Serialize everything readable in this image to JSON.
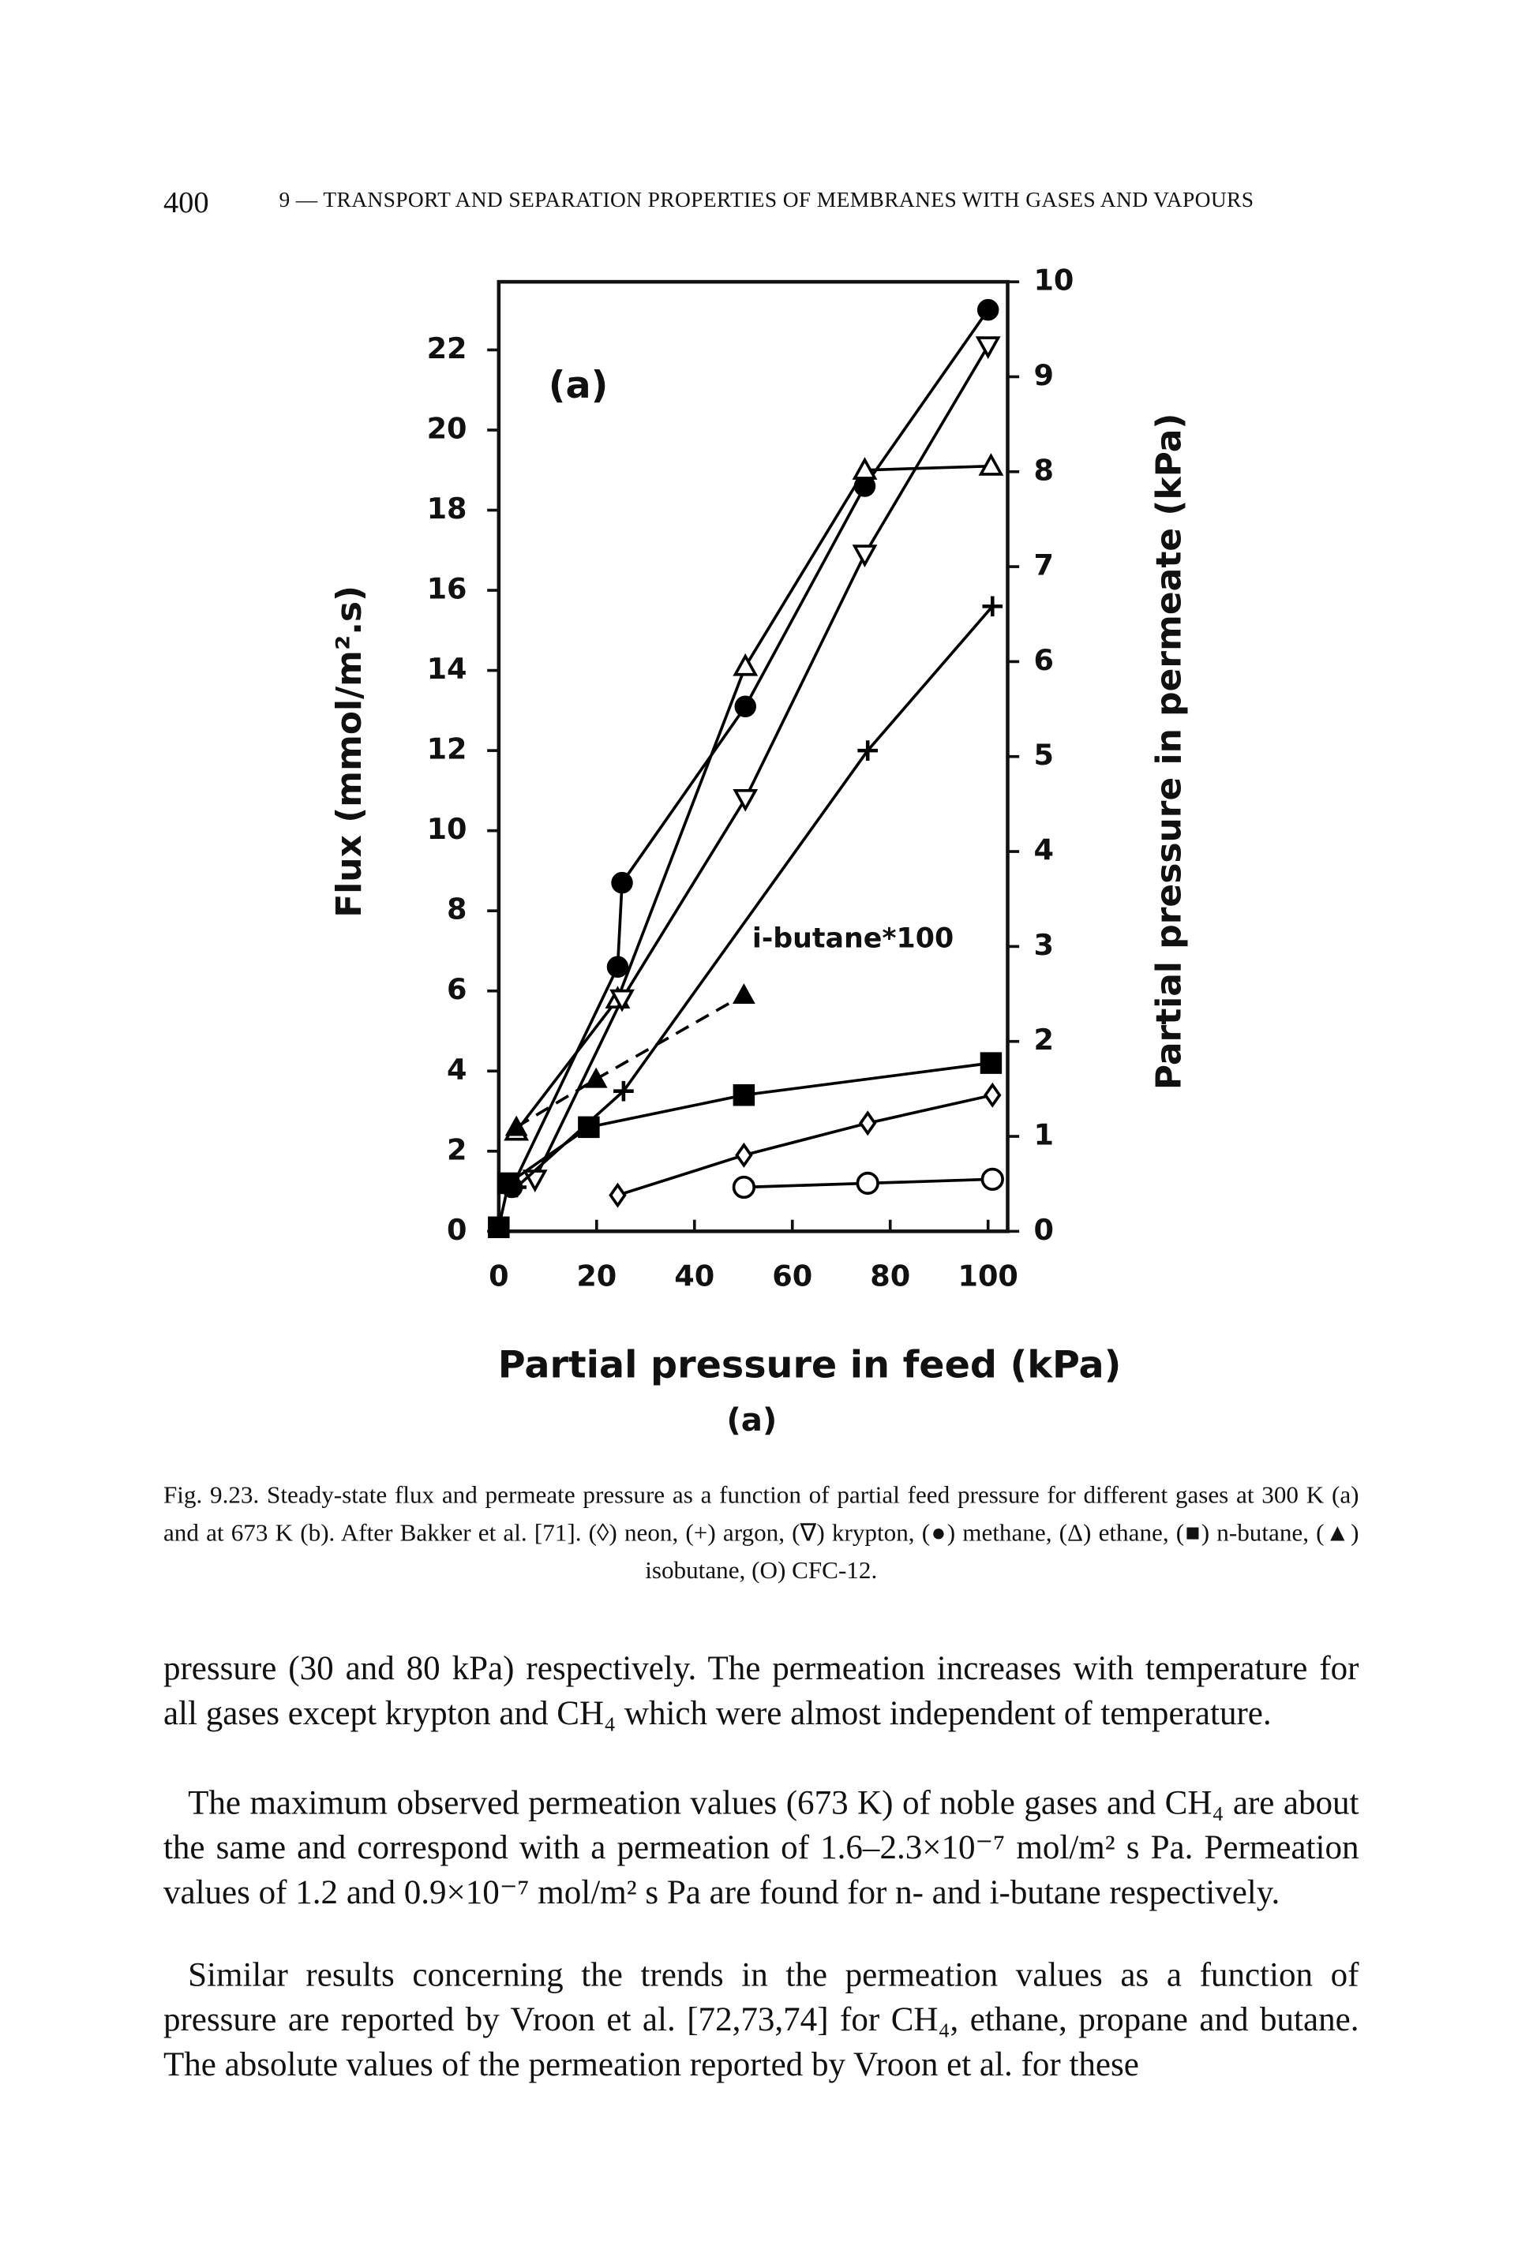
{
  "header": {
    "page_number": "400",
    "running_title": "9 — TRANSPORT AND SEPARATION PROPERTIES OF MEMBRANES WITH GASES AND VAPOURS"
  },
  "chart_data": {
    "type": "line",
    "panel_label": "(a)",
    "annotation": "i-butane*100",
    "x_label": "Partial pressure in feed (kPa)",
    "sub_label": "(a)",
    "y_label": "Flux (mmol/m².s)",
    "y2_label": "Partial pressure in permeate (kPa)",
    "xlim": [
      0,
      104
    ],
    "xticks": [
      0,
      20,
      40,
      60,
      80,
      100
    ],
    "ylim": [
      0,
      23.7
    ],
    "yticks": [
      0,
      2,
      4,
      6,
      8,
      10,
      12,
      14,
      16,
      18,
      20,
      22
    ],
    "y2lim": [
      0,
      10
    ],
    "y2ticks": [
      0,
      1,
      2,
      3,
      4,
      5,
      6,
      7,
      8,
      9,
      10
    ],
    "series": [
      {
        "marker": "circle-filled",
        "color": "#000000",
        "x": [
          2.7,
          24.3,
          25.2,
          50.4,
          74.8,
          100
        ],
        "values": [
          1.1,
          6.6,
          8.7,
          13.1,
          18.6,
          23.0
        ]
      },
      {
        "marker": "triangle-open",
        "color": "#000000",
        "x": [
          3.6,
          24.3,
          50.4,
          74.8,
          100.6
        ],
        "values": [
          2.5,
          5.8,
          14.1,
          19.0,
          19.1
        ]
      },
      {
        "marker": "triangle-down-open",
        "color": "#000000",
        "x": [
          7.4,
          25.2,
          50.4,
          74.8,
          100
        ],
        "values": [
          1.3,
          5.8,
          10.8,
          16.9,
          22.1
        ]
      },
      {
        "marker": "plus",
        "color": "#000000",
        "x": [
          3.6,
          25.5,
          75.4,
          100.9
        ],
        "values": [
          1.1,
          3.5,
          12.0,
          15.6
        ]
      },
      {
        "marker": "diamond-open",
        "color": "#000000",
        "x": [
          24.3,
          50.1,
          75.4,
          100.9
        ],
        "values": [
          0.9,
          1.9,
          2.7,
          3.4
        ]
      },
      {
        "marker": "square-filled",
        "color": "#000000",
        "x": [
          0,
          2,
          18.4,
          50.1,
          100.6
        ],
        "values": [
          0.1,
          1.2,
          2.6,
          3.4,
          4.2
        ]
      },
      {
        "marker": "triangle-filled",
        "color": "#000000",
        "dashed": true,
        "x": [
          3.6,
          19.9,
          50.1
        ],
        "values": [
          2.6,
          3.8,
          5.9
        ]
      },
      {
        "marker": "circle-open",
        "color": "#000000",
        "x": [
          50.1,
          75.4,
          100.9
        ],
        "values": [
          1.1,
          1.2,
          1.3
        ]
      }
    ]
  },
  "caption": "Fig. 9.23. Steady-state flux and permeate pressure as a function of partial feed pressure for different gases at 300 K (a) and at 673 K (b). After Bakker et al. [71]. (◊) neon, (+) argon, (∇) krypton, (●) methane, (Δ) ethane, (■) n-butane, (▲) isobutane, (O) CFC-12.",
  "paragraphs": [
    "pressure (30 and 80 kPa) respectively. The permeation increases with temperature for all gases except krypton and CH₄ which were almost independent of temperature.",
    "The maximum observed permeation values (673 K) of noble gases and CH₄ are about the same and correspond with a permeation of 1.6–2.3×10⁻⁷ mol/m² s Pa. Permeation values of 1.2 and 0.9×10⁻⁷ mol/m² s Pa are found for n- and i-butane respectively.",
    "Similar results concerning the trends in the permeation values as a function of pressure are reported by Vroon et al. [72,73,74] for CH₄, ethane, propane and butane. The absolute values of the permeation reported by Vroon et al. for these"
  ]
}
